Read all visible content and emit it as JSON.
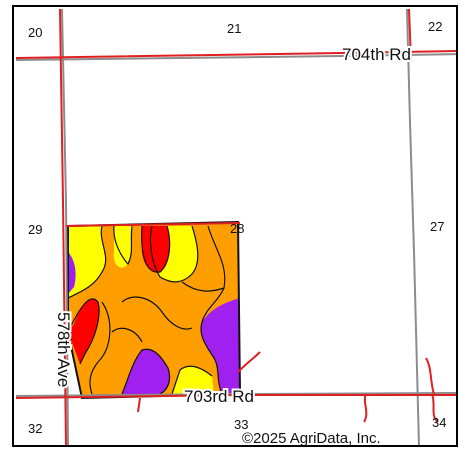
{
  "map": {
    "section_numbers": {
      "s20": "20",
      "s21": "21",
      "s22": "22",
      "s29": "29",
      "s28": "28",
      "s27": "27",
      "s32": "32",
      "s33": "33",
      "s34": "34"
    },
    "roads": {
      "north": "704th Rd",
      "south": "703rd Rd",
      "west": "578th Ave"
    },
    "copyright": "©2025 AgriData, Inc.",
    "colors": {
      "road_red": "#e02020",
      "road_gray": "#8c8c8c",
      "soil_orange": "#ff9e00",
      "soil_yellow": "#ffff00",
      "soil_red": "#ff0000",
      "soil_purple": "#a020f0"
    }
  }
}
